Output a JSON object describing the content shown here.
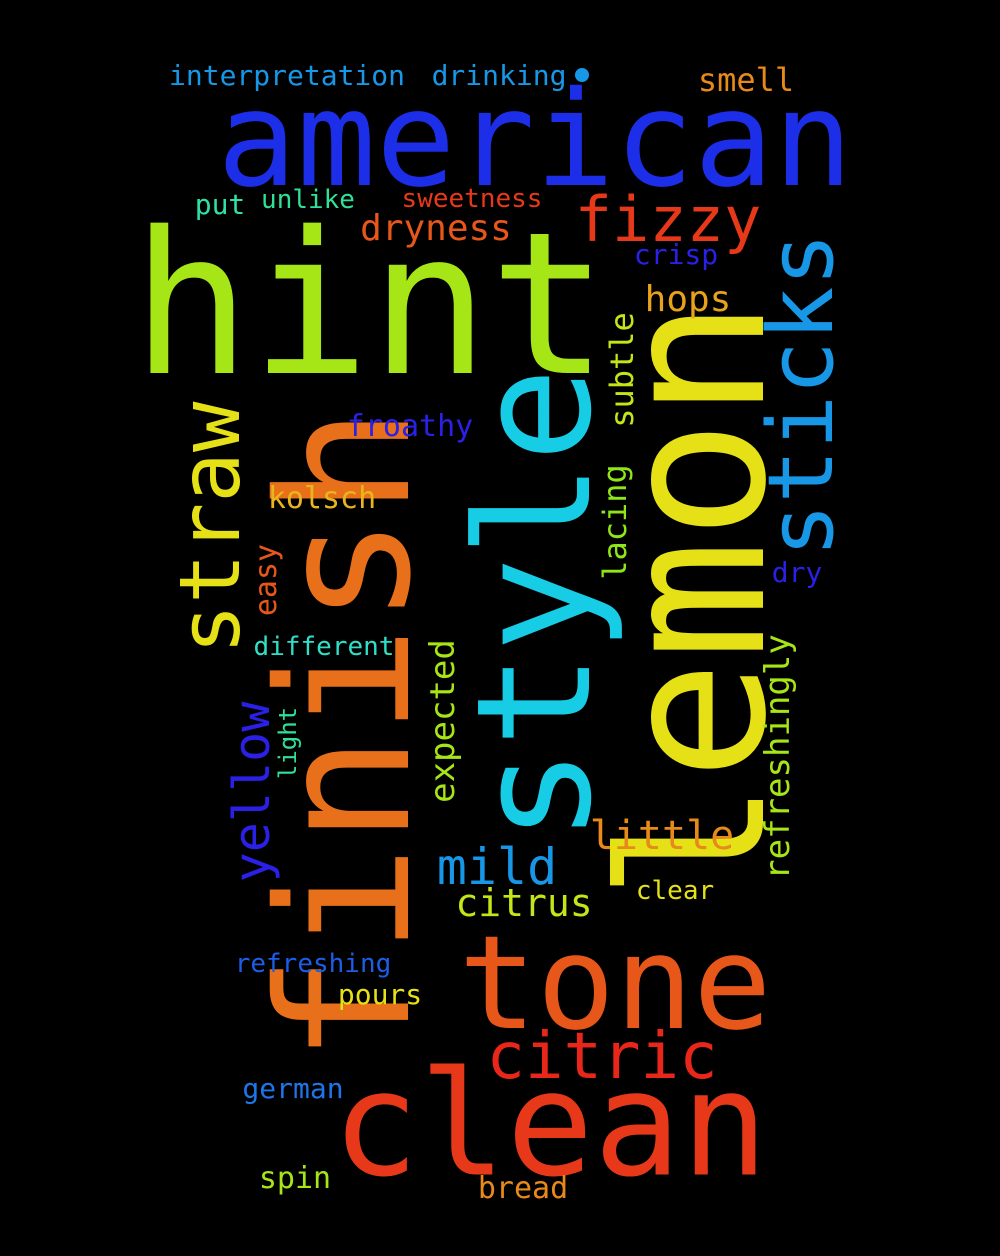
{
  "words": [
    {
      "text": "american",
      "color": "#1c2ee8"
    },
    {
      "text": "hint",
      "color": "#a6e516"
    },
    {
      "text": "lemon",
      "color": "#e6e117"
    },
    {
      "text": "finish",
      "color": "#e8701a"
    },
    {
      "text": "style",
      "color": "#17cde6"
    },
    {
      "text": "clean",
      "color": "#e8381a"
    },
    {
      "text": "tone",
      "color": "#e8571a"
    },
    {
      "text": "sticks",
      "color": "#1797e6"
    },
    {
      "text": "straw",
      "color": "#e6e117"
    },
    {
      "text": "fizzy",
      "color": "#e8381a"
    },
    {
      "text": "citric",
      "color": "#e8261a"
    },
    {
      "text": "yellow",
      "color": "#2a20e6"
    },
    {
      "text": "mild",
      "color": "#1797e6"
    },
    {
      "text": "little",
      "color": "#e88a1a"
    },
    {
      "text": "citrus",
      "color": "#c4e517"
    },
    {
      "text": "refreshingly",
      "color": "#a6e516"
    },
    {
      "text": "expected",
      "color": "#a6e516"
    },
    {
      "text": "dryness",
      "color": "#e8571a"
    },
    {
      "text": "hops",
      "color": "#e8a31a"
    },
    {
      "text": "subtle",
      "color": "#c4e517"
    },
    {
      "text": "lacing",
      "color": "#8ee517"
    },
    {
      "text": "smell",
      "color": "#e88a1a"
    },
    {
      "text": "easy",
      "color": "#e8571a"
    },
    {
      "text": "froathy",
      "color": "#2a20e6"
    },
    {
      "text": "kolsch",
      "color": "#e8b51a"
    },
    {
      "text": "interpretation",
      "color": "#1797e6"
    },
    {
      "text": "drinking",
      "color": "#1797e6"
    },
    {
      "text": "sweetness",
      "color": "#e8381a"
    },
    {
      "text": "crisp",
      "color": "#2a20e6"
    },
    {
      "text": "unlike",
      "color": "#2fe096"
    },
    {
      "text": "put",
      "color": "#2fe0a8"
    },
    {
      "text": "different",
      "color": "#2fe0c8"
    },
    {
      "text": "light",
      "color": "#2fe096"
    },
    {
      "text": "dry",
      "color": "#2a20e6"
    },
    {
      "text": "clear",
      "color": "#e6e117"
    },
    {
      "text": "refreshing",
      "color": "#1d5de8"
    },
    {
      "text": "pours",
      "color": "#e6e117"
    },
    {
      "text": "german",
      "color": "#1d75e8"
    },
    {
      "text": "spin",
      "color": "#a6e516"
    },
    {
      "text": "bread",
      "color": "#e8891a"
    }
  ]
}
